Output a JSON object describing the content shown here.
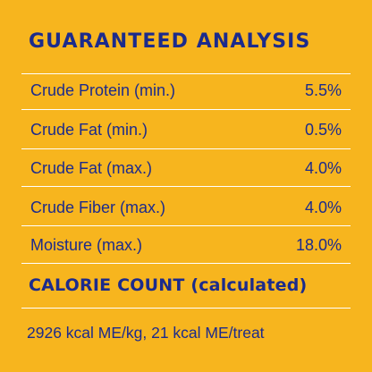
{
  "colors": {
    "background": "#f7b51e",
    "text": "#1c2b8c",
    "divider": "#ffffff"
  },
  "analysis": {
    "title": "GUARANTEED ANALYSIS",
    "rows": [
      {
        "label": "Crude Protein (min.)",
        "value": "5.5%"
      },
      {
        "label": "Crude Fat (min.)",
        "value": "0.5%"
      },
      {
        "label": "Crude Fat (max.)",
        "value": "4.0%"
      },
      {
        "label": "Crude Fiber (max.)",
        "value": "4.0%"
      },
      {
        "label": "Moisture (max.)",
        "value": "18.0%"
      }
    ]
  },
  "calorie": {
    "title": "CALORIE COUNT (calculated)",
    "text": "2926 kcal ME/kg, 21 kcal ME/treat"
  }
}
